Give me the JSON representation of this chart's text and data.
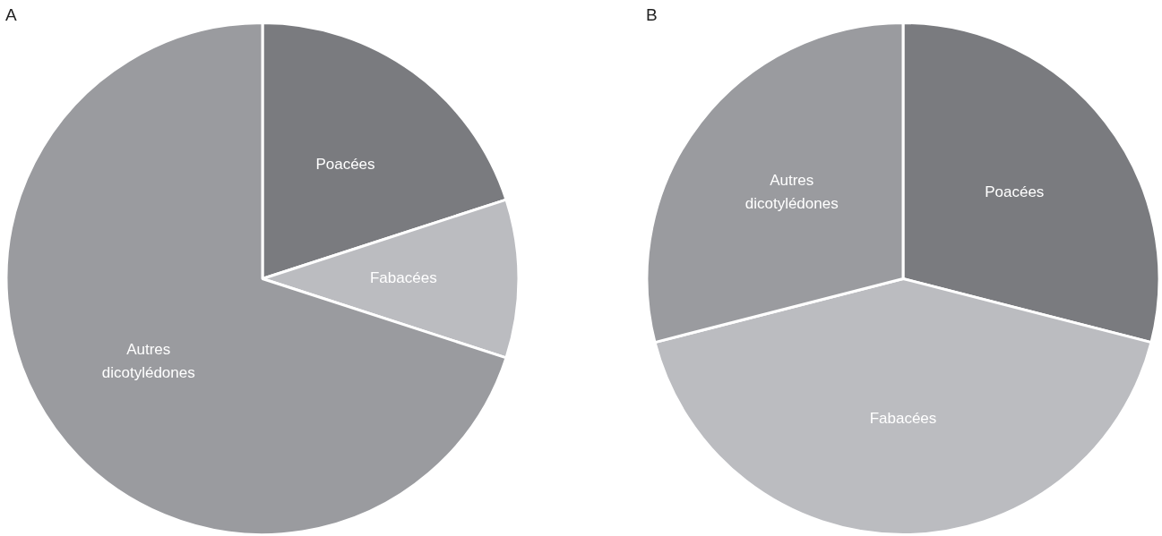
{
  "chart_data": [
    {
      "type": "pie",
      "title": "A",
      "categories": [
        "Poacées",
        "Fabacées",
        "Autres dicotylédones"
      ],
      "values": [
        20,
        10,
        70
      ],
      "colors": [
        "#7a7b7f",
        "#bbbcc0",
        "#9a9b9f"
      ],
      "legend": false
    },
    {
      "type": "pie",
      "title": "B",
      "categories": [
        "Poacées",
        "Fabacées",
        "Autres dicotylédones"
      ],
      "values": [
        29,
        42,
        29
      ],
      "colors": [
        "#7a7b7f",
        "#bbbcc0",
        "#9a9b9f"
      ],
      "legend": false
    }
  ]
}
